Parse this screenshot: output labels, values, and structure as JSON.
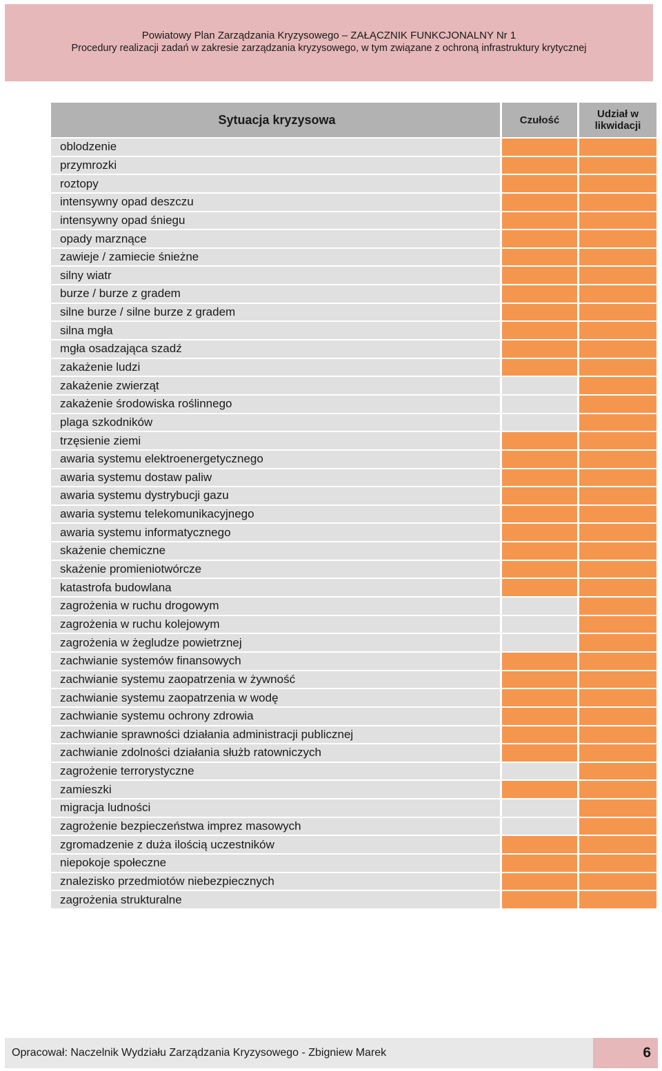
{
  "header": {
    "line1": "Powiatowy Plan Zarządzania Kryzysowego – ZAŁĄCZNIK FUNKCJONALNY Nr 1",
    "line2": "Procedury realizacji zadań w zakresie zarządzania kryzysowego, w tym związane z ochroną infrastruktury krytycznej"
  },
  "colors": {
    "header_band": "#e6b8b9",
    "column_header": "#b2b2b2",
    "cell_grey": "#e0e0e0",
    "marked_orange": "#f5964f"
  },
  "table": {
    "columns": [
      "Sytuacja kryzysowa",
      "Czułość",
      "Udział w likwidacji"
    ],
    "rows": [
      {
        "name": "oblodzenie",
        "czulosc": true,
        "udzial": true
      },
      {
        "name": "przymrozki",
        "czulosc": true,
        "udzial": true
      },
      {
        "name": "roztopy",
        "czulosc": true,
        "udzial": true
      },
      {
        "name": "intensywny opad deszczu",
        "czulosc": true,
        "udzial": true
      },
      {
        "name": "intensywny opad śniegu",
        "czulosc": true,
        "udzial": true
      },
      {
        "name": "opady marznące",
        "czulosc": true,
        "udzial": true
      },
      {
        "name": "zawieje / zamiecie śnieżne",
        "czulosc": true,
        "udzial": true
      },
      {
        "name": "silny wiatr",
        "czulosc": true,
        "udzial": true
      },
      {
        "name": "burze / burze z gradem",
        "czulosc": true,
        "udzial": true
      },
      {
        "name": "silne burze / silne burze z gradem",
        "czulosc": true,
        "udzial": true
      },
      {
        "name": "silna mgła",
        "czulosc": true,
        "udzial": true
      },
      {
        "name": "mgła osadzająca szadź",
        "czulosc": true,
        "udzial": true
      },
      {
        "name": "zakażenie ludzi",
        "czulosc": true,
        "udzial": true
      },
      {
        "name": "zakażenie zwierząt",
        "czulosc": false,
        "udzial": true
      },
      {
        "name": "zakażenie środowiska roślinnego",
        "czulosc": false,
        "udzial": true
      },
      {
        "name": "plaga szkodników",
        "czulosc": false,
        "udzial": true
      },
      {
        "name": "trzęsienie ziemi",
        "czulosc": true,
        "udzial": true
      },
      {
        "name": "awaria systemu elektroenergetycznego",
        "czulosc": true,
        "udzial": true
      },
      {
        "name": "awaria systemu dostaw paliw",
        "czulosc": true,
        "udzial": true
      },
      {
        "name": "awaria systemu dystrybucji gazu",
        "czulosc": true,
        "udzial": true
      },
      {
        "name": "awaria systemu telekomunikacyjnego",
        "czulosc": true,
        "udzial": true
      },
      {
        "name": "awaria systemu informatycznego",
        "czulosc": true,
        "udzial": true
      },
      {
        "name": "skażenie chemiczne",
        "czulosc": true,
        "udzial": true
      },
      {
        "name": "skażenie promieniotwórcze",
        "czulosc": true,
        "udzial": true
      },
      {
        "name": "katastrofa budowlana",
        "czulosc": true,
        "udzial": true
      },
      {
        "name": "zagrożenia w ruchu drogowym",
        "czulosc": false,
        "udzial": true
      },
      {
        "name": "zagrożenia w ruchu kolejowym",
        "czulosc": false,
        "udzial": true
      },
      {
        "name": "zagrożenia w żegludze powietrznej",
        "czulosc": false,
        "udzial": true
      },
      {
        "name": "zachwianie systemów finansowych",
        "czulosc": true,
        "udzial": true
      },
      {
        "name": "zachwianie systemu zaopatrzenia w żywność",
        "czulosc": true,
        "udzial": true
      },
      {
        "name": "zachwianie systemu zaopatrzenia w wodę",
        "czulosc": true,
        "udzial": true
      },
      {
        "name": "zachwianie systemu ochrony zdrowia",
        "czulosc": true,
        "udzial": true
      },
      {
        "name": "zachwianie sprawności działania administracji publicznej",
        "czulosc": true,
        "udzial": true
      },
      {
        "name": "zachwianie zdolności działania służb ratowniczych",
        "czulosc": true,
        "udzial": true
      },
      {
        "name": "zagrożenie terrorystyczne",
        "czulosc": false,
        "udzial": true
      },
      {
        "name": "zamieszki",
        "czulosc": true,
        "udzial": true
      },
      {
        "name": "migracja ludności",
        "czulosc": false,
        "udzial": true
      },
      {
        "name": "zagrożenie bezpieczeństwa imprez masowych",
        "czulosc": false,
        "udzial": true
      },
      {
        "name": "zgromadzenie z duża ilością uczestników",
        "czulosc": true,
        "udzial": true
      },
      {
        "name": "niepokoje społeczne",
        "czulosc": true,
        "udzial": true
      },
      {
        "name": "znalezisko przedmiotów niebezpiecznych",
        "czulosc": true,
        "udzial": true
      },
      {
        "name": "zagrożenia strukturalne",
        "czulosc": true,
        "udzial": true
      }
    ]
  },
  "footer": {
    "author": "Opracował: Naczelnik Wydziału Zarządzania Kryzysowego - Zbigniew Marek",
    "page": "6"
  }
}
